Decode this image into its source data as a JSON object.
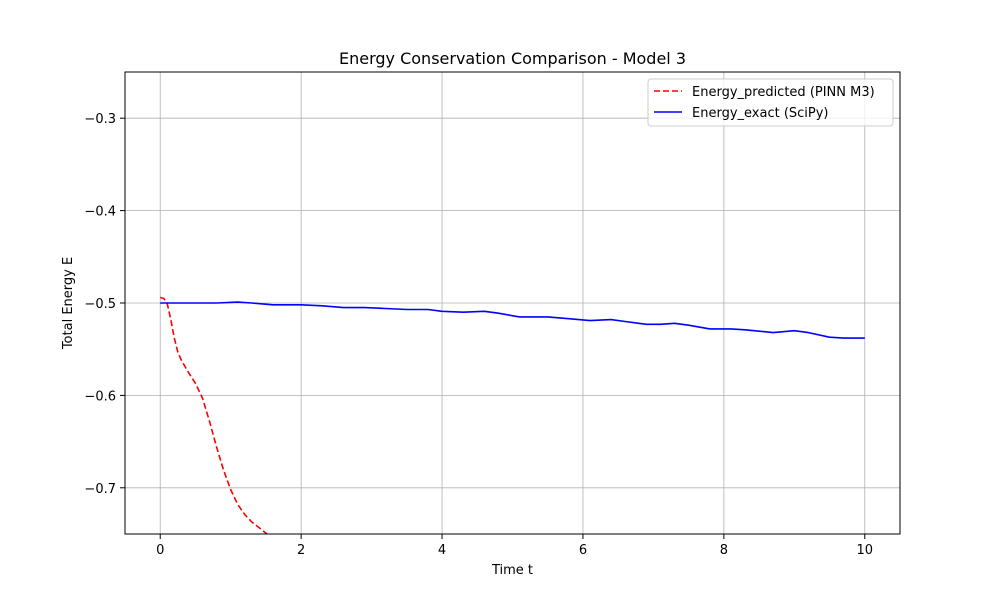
{
  "chart_data": {
    "type": "line",
    "title": "Energy Conservation Comparison - Model 3",
    "xlabel": "Time t",
    "ylabel": "Total Energy E",
    "xlim": [
      -0.5,
      10.5
    ],
    "ylim": [
      -0.75,
      -0.25
    ],
    "xticks": [
      0,
      2,
      4,
      6,
      8,
      10
    ],
    "xtick_labels": [
      "0",
      "2",
      "4",
      "6",
      "8",
      "10"
    ],
    "yticks": [
      -0.7,
      -0.6,
      -0.5,
      -0.4,
      -0.3
    ],
    "ytick_labels": [
      "−0.7",
      "−0.6",
      "−0.5",
      "−0.4",
      "−0.3"
    ],
    "grid": true,
    "legend_position": "top-right",
    "series": [
      {
        "name": "Energy_predicted (PINN M3)",
        "color": "#ff0000",
        "dash": "dashed",
        "x": [
          0.0,
          0.05,
          0.1,
          0.15,
          0.2,
          0.25,
          0.3,
          0.4,
          0.5,
          0.6,
          0.7,
          0.8,
          0.9,
          1.0,
          1.1,
          1.2,
          1.3,
          1.4,
          1.5,
          1.6,
          1.65
        ],
        "y": [
          -0.494,
          -0.495,
          -0.501,
          -0.518,
          -0.538,
          -0.553,
          -0.562,
          -0.575,
          -0.587,
          -0.603,
          -0.628,
          -0.656,
          -0.681,
          -0.702,
          -0.718,
          -0.729,
          -0.737,
          -0.743,
          -0.749,
          -0.755,
          -0.758
        ]
      },
      {
        "name": "Energy_exact (SciPy)",
        "color": "#0000ff",
        "dash": "solid",
        "x": [
          0.0,
          0.4,
          0.8,
          1.1,
          1.3,
          1.6,
          2.0,
          2.3,
          2.6,
          2.9,
          3.2,
          3.5,
          3.8,
          4.0,
          4.3,
          4.6,
          4.8,
          5.1,
          5.5,
          5.8,
          6.1,
          6.4,
          6.6,
          6.9,
          7.1,
          7.3,
          7.5,
          7.8,
          8.1,
          8.3,
          8.7,
          9.0,
          9.2,
          9.5,
          9.7,
          10.0
        ],
        "y": [
          -0.5,
          -0.5,
          -0.5,
          -0.499,
          -0.5,
          -0.502,
          -0.502,
          -0.503,
          -0.505,
          -0.505,
          -0.506,
          -0.507,
          -0.507,
          -0.509,
          -0.51,
          -0.509,
          -0.511,
          -0.515,
          -0.515,
          -0.517,
          -0.519,
          -0.518,
          -0.52,
          -0.523,
          -0.523,
          -0.522,
          -0.524,
          -0.528,
          -0.528,
          -0.529,
          -0.532,
          -0.53,
          -0.532,
          -0.537,
          -0.538,
          -0.538
        ]
      }
    ]
  }
}
